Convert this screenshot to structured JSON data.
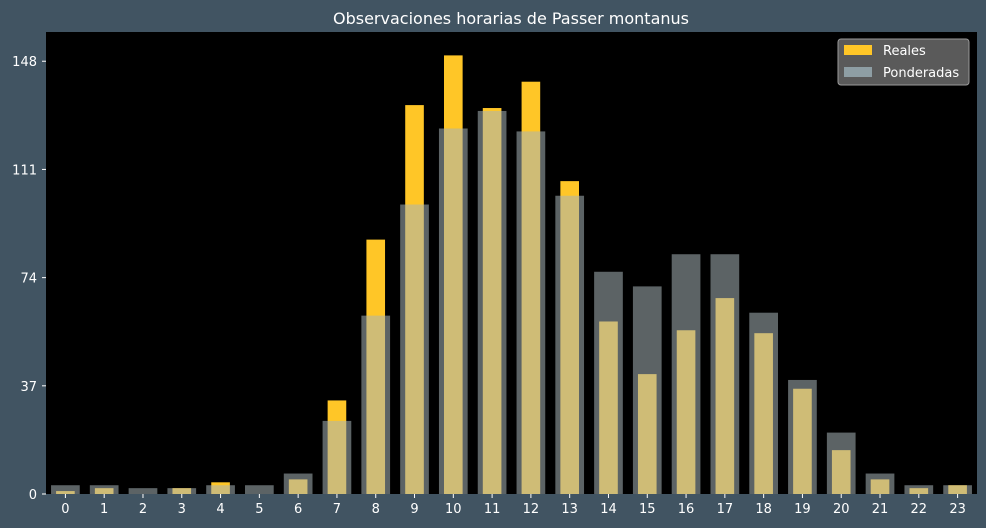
{
  "chart_data": {
    "type": "bar",
    "title": "Observaciones horarias de Passer montanus",
    "xlabel": "",
    "ylabel": "",
    "categories": [
      "0",
      "1",
      "2",
      "3",
      "4",
      "5",
      "6",
      "7",
      "8",
      "9",
      "10",
      "11",
      "12",
      "13",
      "14",
      "15",
      "16",
      "17",
      "18",
      "19",
      "20",
      "21",
      "22",
      "23"
    ],
    "series": [
      {
        "name": "Reales",
        "color": "#ffc627",
        "values": [
          1,
          2,
          0,
          2,
          4,
          0,
          5,
          32,
          87,
          133,
          150,
          132,
          141,
          107,
          59,
          41,
          56,
          67,
          55,
          36,
          15,
          5,
          2,
          3
        ]
      },
      {
        "name": "Ponderadas",
        "color": "#a7b4b8",
        "values": [
          3,
          3,
          2,
          2,
          3,
          3,
          7,
          25,
          61,
          99,
          125,
          131,
          124,
          102,
          76,
          71,
          82,
          82,
          62,
          39,
          21,
          7,
          3,
          3
        ]
      }
    ],
    "yticks": [
      0,
      37,
      74,
      111,
      148
    ],
    "ylim": [
      0,
      158
    ],
    "legend_position": "top-right",
    "grid": false,
    "background": "#000000",
    "figure_background": "#415462",
    "text_color": "#ffffff"
  }
}
